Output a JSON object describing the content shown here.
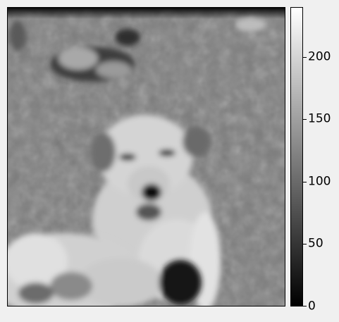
{
  "image": {
    "subject": "dog",
    "colormap": "gray"
  },
  "colorbar": {
    "min": 0,
    "max": 240,
    "ticks": [
      {
        "value": 0,
        "label": "0"
      },
      {
        "value": 50,
        "label": "50"
      },
      {
        "value": 100,
        "label": "100"
      },
      {
        "value": 150,
        "label": "150"
      },
      {
        "value": 200,
        "label": "200"
      }
    ],
    "colors": {
      "low": "#000000",
      "high": "#ffffff"
    }
  }
}
